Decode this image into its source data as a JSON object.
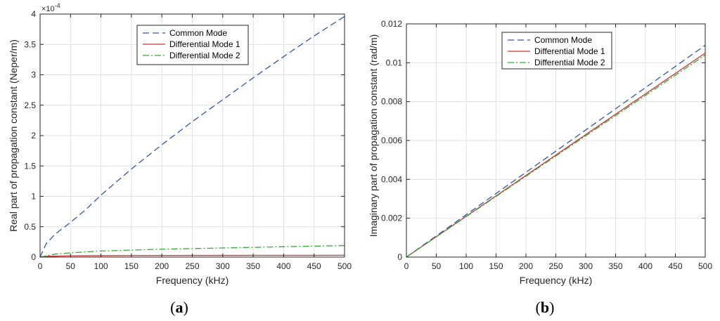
{
  "chart_data": [
    {
      "type": "line",
      "panel_caption": "a",
      "xlabel": "Frequency (kHz)",
      "ylabel": "Real part of propagation constant (Neper/m)",
      "xlim": [
        0,
        500
      ],
      "ylim": [
        0,
        4
      ],
      "y_multiplier_label": "×10",
      "y_multiplier_exp": "-4",
      "xticks": [
        "0",
        "50",
        "100",
        "150",
        "200",
        "250",
        "300",
        "350",
        "400",
        "450",
        "500"
      ],
      "yticks": [
        "0",
        "0.5",
        "1",
        "1.5",
        "2",
        "2.5",
        "3",
        "3.5",
        "4"
      ],
      "grid": true,
      "legend_position": "top-right",
      "series": [
        {
          "name": "Common Mode",
          "color": "#3355aa",
          "dash": "dashed",
          "x": [
            0,
            10,
            25,
            50,
            75,
            100,
            150,
            200,
            250,
            300,
            350,
            400,
            450,
            500
          ],
          "y": [
            0.0,
            0.22,
            0.38,
            0.57,
            0.78,
            1.02,
            1.45,
            1.85,
            2.23,
            2.59,
            2.95,
            3.3,
            3.64,
            3.96
          ]
        },
        {
          "name": "Differential Mode 1",
          "color": "#cc3333",
          "dash": "solid",
          "x": [
            0,
            10,
            50,
            100,
            150,
            200,
            250,
            300,
            350,
            400,
            450,
            500
          ],
          "y": [
            0.0,
            0.012,
            0.02,
            0.024,
            0.026,
            0.027,
            0.028,
            0.028,
            0.029,
            0.029,
            0.029,
            0.03
          ]
        },
        {
          "name": "Differential Mode 2",
          "color": "#33aa33",
          "dash": "dashdot",
          "x": [
            0,
            25,
            50,
            100,
            150,
            200,
            250,
            300,
            350,
            400,
            450,
            500
          ],
          "y": [
            0.0,
            0.05,
            0.07,
            0.1,
            0.115,
            0.13,
            0.14,
            0.15,
            0.16,
            0.17,
            0.18,
            0.19
          ]
        }
      ]
    },
    {
      "type": "line",
      "panel_caption": "b",
      "xlabel": "Frequency (kHz)",
      "ylabel": "Imaginary part of propagation constant (rad/m)",
      "xlim": [
        0,
        500
      ],
      "ylim": [
        0,
        0.012
      ],
      "xticks": [
        "0",
        "50",
        "100",
        "150",
        "200",
        "250",
        "300",
        "350",
        "400",
        "450",
        "500"
      ],
      "yticks": [
        "0",
        "0.002",
        "0.004",
        "0.006",
        "0.008",
        "0.01",
        "0.012"
      ],
      "grid": true,
      "legend_position": "top-left",
      "series": [
        {
          "name": "Common Mode",
          "color": "#3355aa",
          "dash": "dashed",
          "x": [
            0,
            100,
            200,
            300,
            400,
            500
          ],
          "y": [
            0.0,
            0.00218,
            0.00436,
            0.00654,
            0.00872,
            0.0109
          ]
        },
        {
          "name": "Differential Mode 1",
          "color": "#cc3333",
          "dash": "solid",
          "x": [
            0,
            100,
            200,
            300,
            400,
            500
          ],
          "y": [
            0.0,
            0.0021,
            0.0042,
            0.0063,
            0.0084,
            0.0105
          ]
        },
        {
          "name": "Differential Mode 2",
          "color": "#33aa33",
          "dash": "dashdot",
          "x": [
            0,
            100,
            200,
            300,
            400,
            500
          ],
          "y": [
            0.0,
            0.00208,
            0.00416,
            0.00624,
            0.00832,
            0.0104
          ]
        }
      ]
    }
  ]
}
